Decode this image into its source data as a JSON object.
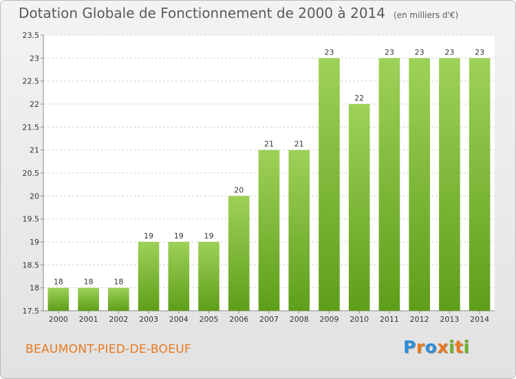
{
  "header": {
    "title": "Dotation Globale de Fonctionnement de 2000 à 2014",
    "unit": "(en milliers d'€)"
  },
  "footer": {
    "commune": "BEAUMONT-PIED-DE-BOEUF",
    "logo": "Proxiti",
    "logo_colors": [
      "#2f8fd8",
      "#e8781e",
      "#2f8fd8",
      "#e8781e",
      "#6ab52a",
      "#e8781e",
      "#6ab52a"
    ]
  },
  "chart_data": {
    "type": "bar",
    "title": "Dotation Globale de Fonctionnement de 2000 à 2014",
    "xlabel": "",
    "ylabel": "",
    "categories": [
      "2000",
      "2001",
      "2002",
      "2003",
      "2004",
      "2005",
      "2006",
      "2007",
      "2008",
      "2009",
      "2010",
      "2011",
      "2012",
      "2013",
      "2014"
    ],
    "values": [
      18,
      18,
      18,
      19,
      19,
      19,
      20,
      21,
      21,
      23,
      22,
      23,
      23,
      23,
      23
    ],
    "value_labels": [
      "18",
      "18",
      "18",
      "19",
      "19",
      "19",
      "20",
      "21",
      "21",
      "23",
      "22",
      "23",
      "23",
      "23",
      "23"
    ],
    "ylim": [
      17.5,
      23.5
    ],
    "yticks": [
      "17.5",
      "18",
      "18.5",
      "19",
      "19.5",
      "20",
      "20.5",
      "21",
      "21.5",
      "22",
      "22.5",
      "23",
      "23.5"
    ],
    "grid": true,
    "bar_color": "#7cc03a"
  }
}
